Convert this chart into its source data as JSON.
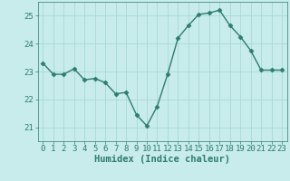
{
  "x": [
    0,
    1,
    2,
    3,
    4,
    5,
    6,
    7,
    8,
    9,
    10,
    11,
    12,
    13,
    14,
    15,
    16,
    17,
    18,
    19,
    20,
    21,
    22,
    23
  ],
  "y": [
    23.3,
    22.9,
    22.9,
    23.1,
    22.7,
    22.75,
    22.6,
    22.2,
    22.25,
    21.45,
    21.05,
    21.75,
    22.9,
    24.2,
    24.65,
    25.05,
    25.1,
    25.2,
    24.65,
    24.25,
    23.75,
    23.05,
    23.05,
    23.05
  ],
  "line_color": "#2d7d6e",
  "marker": "D",
  "marker_size": 2.5,
  "bg_color": "#c8ebeb",
  "grid_color": "#a8d8d8",
  "xlabel": "Humidex (Indice chaleur)",
  "xlim": [
    -0.5,
    23.5
  ],
  "ylim": [
    20.5,
    25.5
  ],
  "yticks": [
    21,
    22,
    23,
    24,
    25
  ],
  "xticks": [
    0,
    1,
    2,
    3,
    4,
    5,
    6,
    7,
    8,
    9,
    10,
    11,
    12,
    13,
    14,
    15,
    16,
    17,
    18,
    19,
    20,
    21,
    22,
    23
  ],
  "tick_color": "#2d7d6e",
  "label_color": "#2d7d6e",
  "font_size": 6.5,
  "xlabel_fontsize": 7.5,
  "lw": 1.0
}
